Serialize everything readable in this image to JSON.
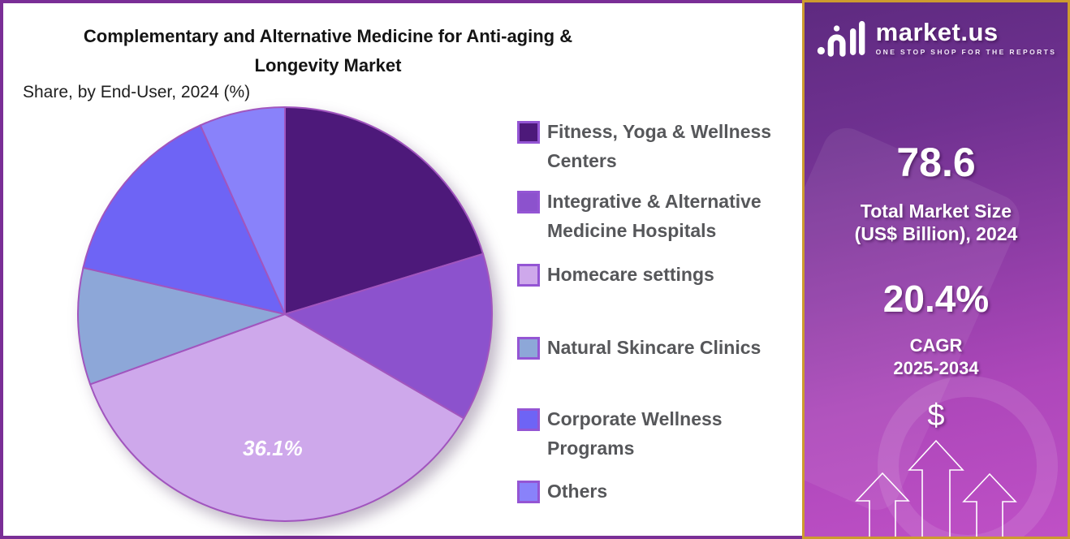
{
  "chart": {
    "title_line1": "Complementary and Alternative Medicine for Anti-aging &",
    "title_line2": "Longevity Market",
    "subtitle": "Share, by End-User, 2024 (%)"
  },
  "chart_data": {
    "type": "pie",
    "title": "Complementary and Alternative Medicine for Anti-aging & Longevity Market",
    "subtitle": "Share, by End-User, 2024 (%)",
    "unit": "%",
    "start_angle_deg": 0,
    "direction": "clockwise",
    "legend_position": "right",
    "slices": [
      {
        "label": "Fitness, Yoga & Wellness Centers",
        "value": 20.3,
        "color": "#4D197A"
      },
      {
        "label": "Integrative & Alternative Medicine Hospitals",
        "value": 13.1,
        "color": "#8C52CD"
      },
      {
        "label": "Homecare settings",
        "value": 36.1,
        "color": "#CEA8EB",
        "data_label": "36.1%"
      },
      {
        "label": "Natural Skincare Clinics",
        "value": 9.1,
        "color": "#8DA7D8"
      },
      {
        "label": "Corporate Wellness Programs",
        "value": 14.7,
        "color": "#6E64F5"
      },
      {
        "label": "Others",
        "value": 6.7,
        "color": "#8982FA"
      }
    ]
  },
  "sidebar": {
    "logo_text": "market.us",
    "logo_tagline": "ONE STOP SHOP FOR THE REPORTS",
    "market_size_value": "78.6",
    "market_size_label_line1": "Total Market Size",
    "market_size_label_line2": "(US$ Billion), 2024",
    "cagr_value": "20.4%",
    "cagr_label_line1": "CAGR",
    "cagr_label_line2": "2025-2034",
    "dollar_symbol": "$"
  },
  "colors": {
    "panel_border": "#7A2E96",
    "slice_stroke": "#A155BE",
    "swatch_border": "#9455D4",
    "legend_text": "#56575A",
    "sidebar_border": "#CD9B2E",
    "pie_label_color": "#FFFFFF"
  }
}
